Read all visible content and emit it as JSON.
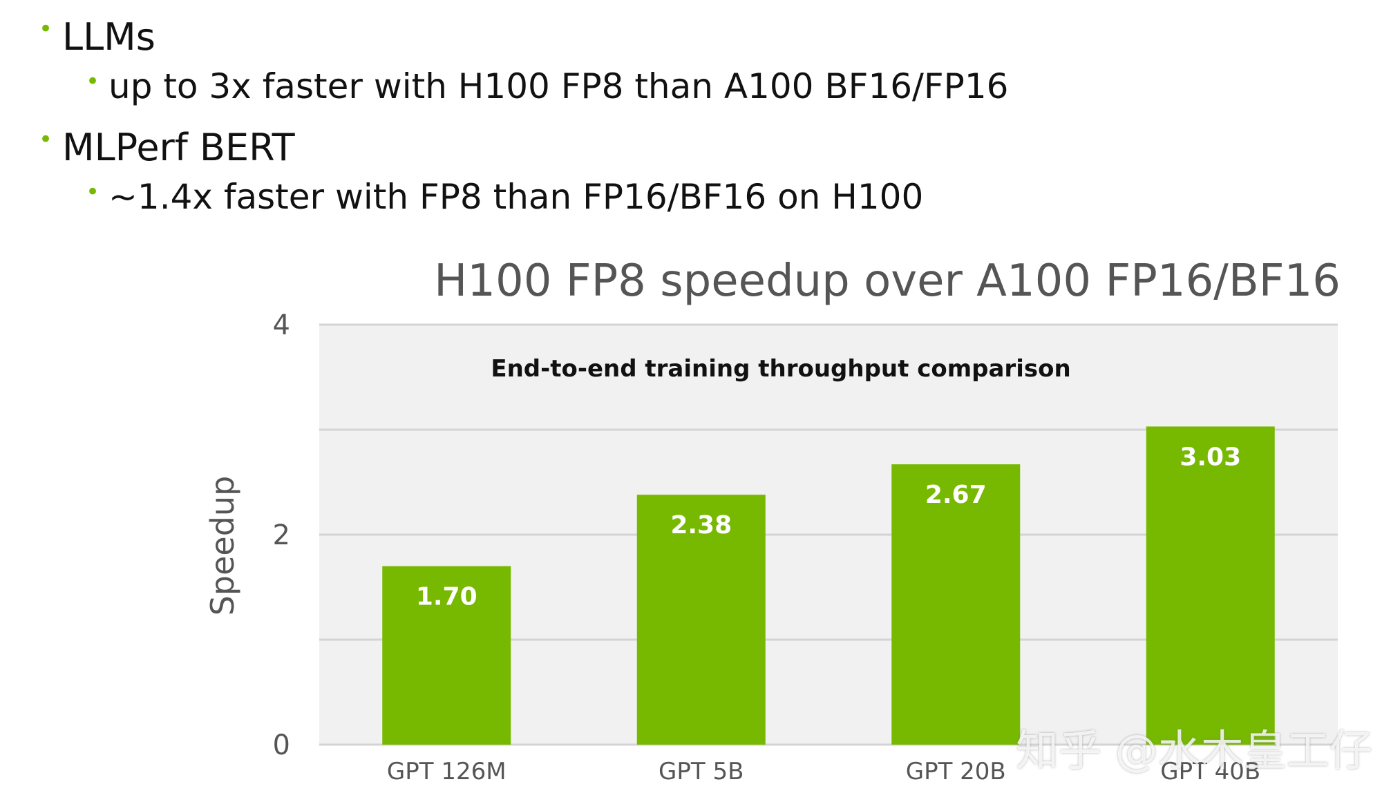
{
  "bullets": [
    {
      "level": 1,
      "text": "LLMs"
    },
    {
      "level": 2,
      "text": "up to 3x faster with H100 FP8 than A100 BF16/FP16"
    },
    {
      "level": 1,
      "text": "MLPerf BERT"
    },
    {
      "level": 2,
      "text": "~1.4x faster with FP8 than FP16/BF16 on H100"
    }
  ],
  "watermark": "知乎 @水木皇工仔",
  "colors": {
    "accent": "#76b900",
    "plot_bg": "#f1f1f1",
    "grid": "#d4d4d4",
    "text": "#111111",
    "axis_text": "#555555"
  },
  "chart_data": {
    "type": "bar",
    "title": "H100 FP8 speedup over A100 FP16/BF16",
    "subtitle": "End-to-end training throughput comparison",
    "ylabel": "Speedup",
    "xlabel": "",
    "categories": [
      "GPT 126M",
      "GPT 5B",
      "GPT 20B",
      "GPT 40B"
    ],
    "values": [
      1.7,
      2.38,
      2.67,
      3.03
    ],
    "data_labels": [
      "1.70",
      "2.38",
      "2.67",
      "3.03"
    ],
    "ylim": [
      0,
      4
    ],
    "yticks": [
      0,
      2,
      4
    ],
    "gridlines": [
      0,
      1,
      2,
      3,
      4
    ],
    "grid": true,
    "legend": "none"
  }
}
